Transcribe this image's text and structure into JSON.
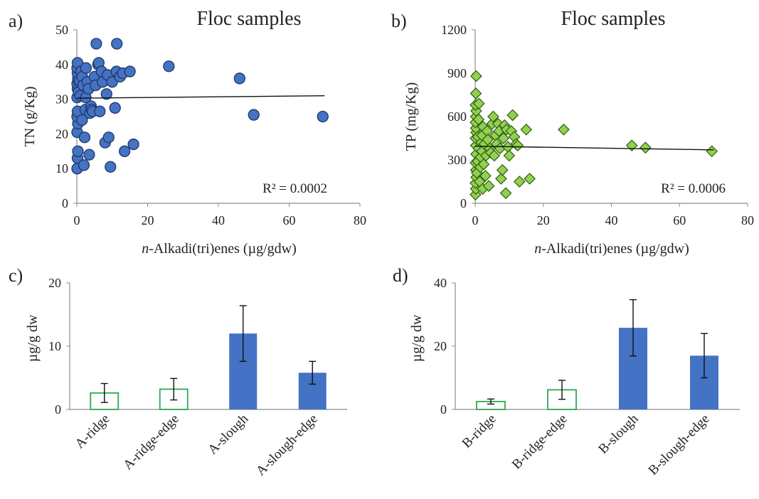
{
  "figure": {
    "background": "#ffffff",
    "colors": {
      "blue_fill": "#4472c4",
      "blue_edge": "#1f3864",
      "green_fill": "#92d050",
      "green_edge": "#2e5d12",
      "hollow_edge": "#2eaa4e",
      "axis": "#8c8c8c",
      "trend": "#111111"
    }
  },
  "chart_data": [
    {
      "panel": "a)",
      "type": "scatter",
      "title": "Floc samples",
      "xlabel_italic": "n",
      "xlabel_rest": "-Alkadi(tri)enes (µg/gdw)",
      "ylabel": "TN (g/Kg)",
      "xlim": [
        0,
        80
      ],
      "ylim": [
        0,
        50
      ],
      "xticks": [
        0,
        20,
        40,
        60,
        80
      ],
      "yticks": [
        0,
        10,
        20,
        30,
        40,
        50
      ],
      "marker": "circle",
      "color": "#4472c4",
      "grid": false,
      "annotation": "R² = 0.0002",
      "trendline": {
        "x": [
          0,
          70
        ],
        "y": [
          30.3,
          31.0
        ]
      },
      "points": [
        [
          0.1,
          10
        ],
        [
          0.2,
          13
        ],
        [
          0.3,
          15
        ],
        [
          0.1,
          20.5
        ],
        [
          0.3,
          23
        ],
        [
          0.1,
          25
        ],
        [
          0.2,
          26.5
        ],
        [
          0.1,
          30.5
        ],
        [
          0.2,
          33
        ],
        [
          0.1,
          34.5
        ],
        [
          0.3,
          36
        ],
        [
          0.2,
          37.5
        ],
        [
          0.1,
          39
        ],
        [
          0.2,
          40.5
        ],
        [
          0.5,
          32
        ],
        [
          0.6,
          35
        ],
        [
          0.8,
          35.5
        ],
        [
          1,
          31
        ],
        [
          1.2,
          38
        ],
        [
          1.5,
          24
        ],
        [
          1.5,
          36.5
        ],
        [
          1.8,
          34
        ],
        [
          2,
          11
        ],
        [
          2.2,
          19
        ],
        [
          2.4,
          27
        ],
        [
          2.5,
          30.5
        ],
        [
          2.6,
          39
        ],
        [
          3,
          35
        ],
        [
          3.3,
          33
        ],
        [
          3.5,
          14
        ],
        [
          3.7,
          26
        ],
        [
          4,
          28
        ],
        [
          4.2,
          27
        ],
        [
          4.5,
          26.5
        ],
        [
          5,
          36.5
        ],
        [
          5.3,
          34
        ],
        [
          5.5,
          46
        ],
        [
          6,
          40
        ],
        [
          6.2,
          40.5
        ],
        [
          6.5,
          26.5
        ],
        [
          7,
          38
        ],
        [
          7.3,
          35
        ],
        [
          8,
          17.5
        ],
        [
          8.4,
          31.5
        ],
        [
          8.7,
          37
        ],
        [
          9,
          19
        ],
        [
          9.5,
          10.5
        ],
        [
          10,
          35
        ],
        [
          10.8,
          27.5
        ],
        [
          11.2,
          38
        ],
        [
          11.3,
          46
        ],
        [
          12.2,
          36.5
        ],
        [
          13,
          37.5
        ],
        [
          13.5,
          15
        ],
        [
          15,
          38
        ],
        [
          16,
          17
        ],
        [
          26,
          39.5
        ],
        [
          46,
          36
        ],
        [
          50,
          25.5
        ],
        [
          69.5,
          25
        ]
      ]
    },
    {
      "panel": "b)",
      "type": "scatter",
      "title": "Floc samples",
      "xlabel_italic": "n",
      "xlabel_rest": "-Alkadi(tri)enes (µg/gdw)",
      "ylabel": "TP (mg/Kg)",
      "xlim": [
        0,
        80
      ],
      "ylim": [
        0,
        1200
      ],
      "xticks": [
        0,
        20,
        40,
        60,
        80
      ],
      "yticks": [
        0,
        300,
        600,
        900,
        1200
      ],
      "marker": "diamond",
      "color": "#92d050",
      "grid": false,
      "annotation": "R² = 0.0006",
      "trendline": {
        "x": [
          0,
          70
        ],
        "y": [
          395,
          370
        ]
      },
      "points": [
        [
          0.1,
          60
        ],
        [
          0.2,
          100
        ],
        [
          0.1,
          140
        ],
        [
          0.3,
          180
        ],
        [
          0.2,
          230
        ],
        [
          0.1,
          280
        ],
        [
          0.3,
          340
        ],
        [
          0.2,
          400
        ],
        [
          0.1,
          450
        ],
        [
          0.3,
          490
        ],
        [
          0.2,
          520
        ],
        [
          0.1,
          560
        ],
        [
          0.2,
          600
        ],
        [
          0.3,
          640
        ],
        [
          0.1,
          680
        ],
        [
          0.2,
          760
        ],
        [
          0.3,
          880
        ],
        [
          0.5,
          210
        ],
        [
          0.7,
          290
        ],
        [
          0.8,
          460
        ],
        [
          1,
          380
        ],
        [
          1,
          580
        ],
        [
          1.1,
          690
        ],
        [
          1.3,
          150
        ],
        [
          1.5,
          250
        ],
        [
          1.6,
          320
        ],
        [
          1.8,
          420
        ],
        [
          2,
          360
        ],
        [
          2,
          470
        ],
        [
          2.2,
          100
        ],
        [
          2.3,
          530
        ],
        [
          2.5,
          270
        ],
        [
          2.7,
          410
        ],
        [
          3,
          190
        ],
        [
          3.2,
          330
        ],
        [
          3.5,
          500
        ],
        [
          3.7,
          440
        ],
        [
          4,
          120
        ],
        [
          4.3,
          380
        ],
        [
          4.6,
          350
        ],
        [
          5,
          550
        ],
        [
          5.3,
          600
        ],
        [
          5.6,
          330
        ],
        [
          6,
          470
        ],
        [
          6.3,
          410
        ],
        [
          6.7,
          550
        ],
        [
          7,
          500
        ],
        [
          7.3,
          380
        ],
        [
          7.6,
          170
        ],
        [
          8,
          230
        ],
        [
          8.3,
          450
        ],
        [
          8.6,
          540
        ],
        [
          9,
          70
        ],
        [
          9.2,
          510
        ],
        [
          9.6,
          390
        ],
        [
          10,
          330
        ],
        [
          10.6,
          500
        ],
        [
          11,
          610
        ],
        [
          11.5,
          460
        ],
        [
          12,
          410
        ],
        [
          12.5,
          400
        ],
        [
          13,
          150
        ],
        [
          15,
          510
        ],
        [
          16,
          170
        ],
        [
          26,
          510
        ],
        [
          46,
          400
        ],
        [
          50,
          385
        ],
        [
          69.5,
          360
        ]
      ]
    },
    {
      "panel": "c)",
      "type": "bar",
      "ylabel": "µg/g dw",
      "ylim": [
        0,
        20
      ],
      "yticks": [
        0,
        10,
        20
      ],
      "categories": [
        "A-ridge",
        "A-ridge-edge",
        "A-slough",
        "A-slough-edge"
      ],
      "values": [
        2.6,
        3.2,
        12.0,
        5.8
      ],
      "errors": [
        1.5,
        1.7,
        4.4,
        1.8
      ],
      "styles": [
        "hollow",
        "hollow",
        "filled",
        "filled"
      ],
      "grid": false
    },
    {
      "panel": "d)",
      "type": "bar",
      "ylabel": "µg/g dw",
      "ylim": [
        0,
        40
      ],
      "yticks": [
        0,
        20,
        40
      ],
      "categories": [
        "B-ridge",
        "B-ridge-edge",
        "B-slough",
        "B-slough-edge"
      ],
      "values": [
        2.5,
        6.2,
        25.8,
        17.0
      ],
      "errors": [
        0.8,
        3.0,
        8.9,
        7.0
      ],
      "styles": [
        "hollow",
        "hollow",
        "filled",
        "filled"
      ],
      "grid": false
    }
  ]
}
